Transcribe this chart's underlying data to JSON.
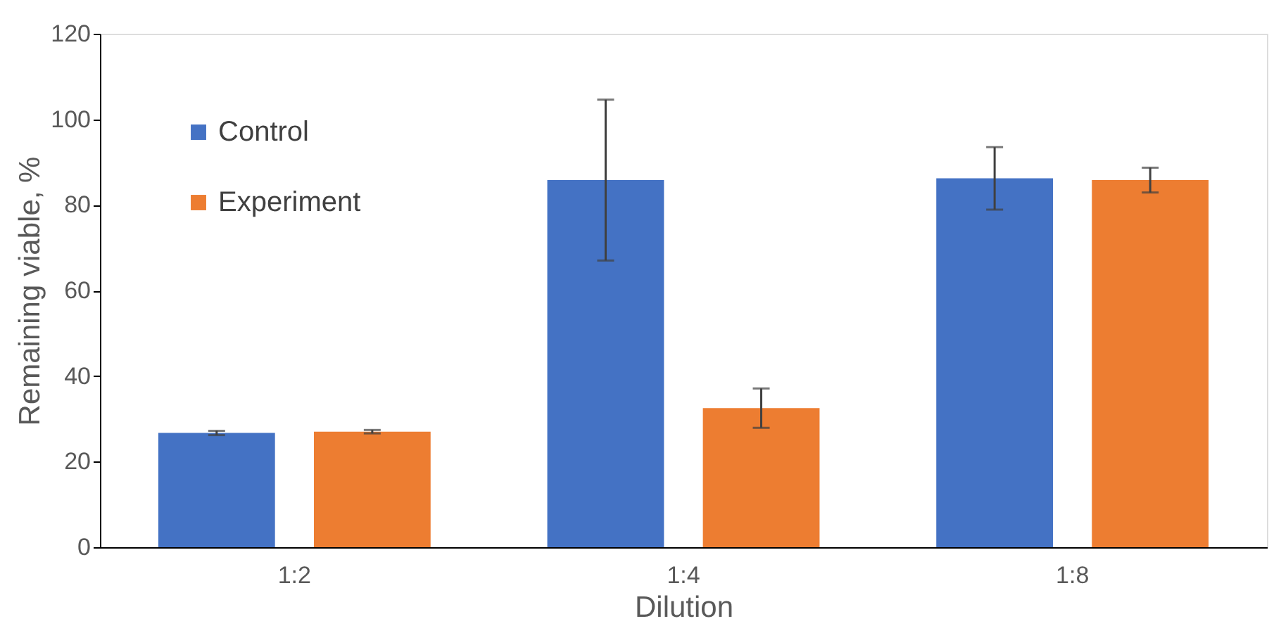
{
  "chart_data": {
    "type": "bar",
    "xlabel": "Dilution",
    "ylabel": "Remaining viable, %",
    "categories": [
      "1:2",
      "1:4",
      "1:8"
    ],
    "series": [
      {
        "name": "Control",
        "color": "#4472c4",
        "values": [
          26.7,
          85.8,
          86.2
        ],
        "errors": [
          0.5,
          18.8,
          7.3
        ]
      },
      {
        "name": "Experiment",
        "color": "#ed7d31",
        "values": [
          27.0,
          32.5,
          85.8
        ],
        "errors": [
          0.4,
          4.6,
          2.9
        ]
      }
    ],
    "ylim": [
      0,
      120
    ],
    "yticks": [
      0,
      20,
      40,
      60,
      80,
      100,
      120
    ],
    "grid": false,
    "legend": "top left"
  }
}
